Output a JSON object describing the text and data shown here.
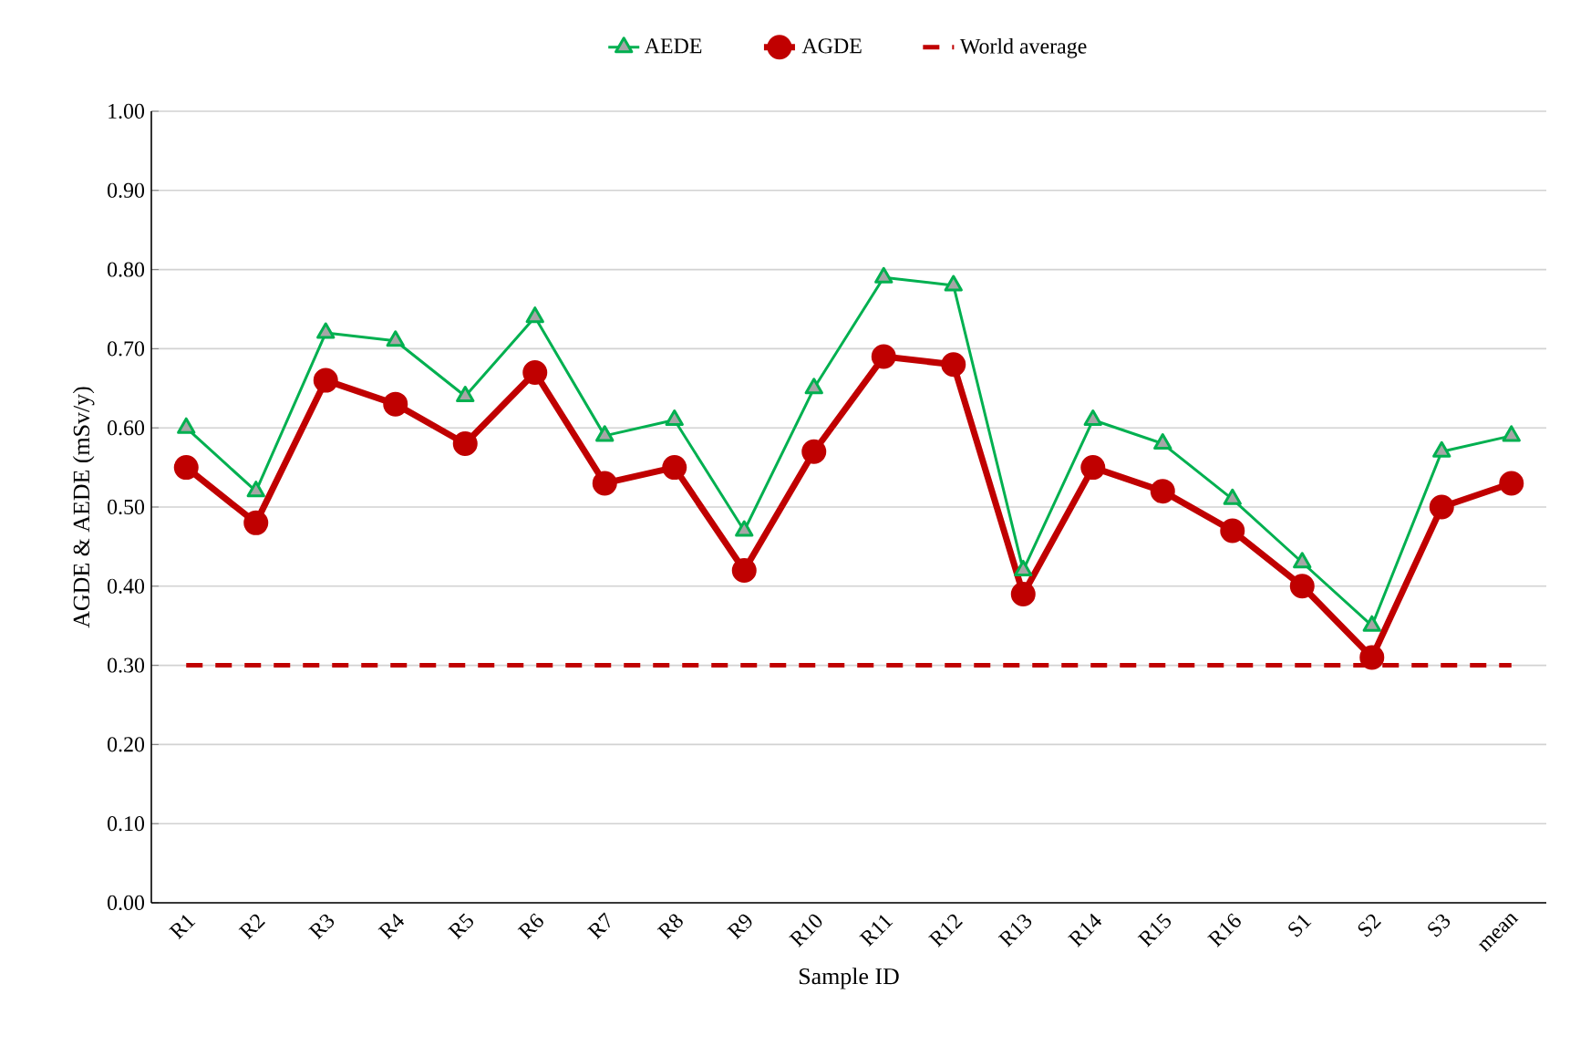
{
  "chart_data": {
    "type": "line",
    "xlabel": "Sample ID",
    "ylabel": "AGDE & AEDE (mSv/y)",
    "categories": [
      "R1",
      "R2",
      "R3",
      "R4",
      "R5",
      "R6",
      "R7",
      "R8",
      "R9",
      "R10",
      "R11",
      "R12",
      "R13",
      "R14",
      "R15",
      "R16",
      "S1",
      "S2",
      "S3",
      "mean"
    ],
    "series": [
      {
        "name": "AEDE",
        "color": "#00b050",
        "marker": "triangle",
        "values": [
          0.6,
          0.52,
          0.72,
          0.71,
          0.64,
          0.74,
          0.59,
          0.61,
          0.47,
          0.65,
          0.79,
          0.78,
          0.42,
          0.61,
          0.58,
          0.51,
          0.43,
          0.35,
          0.57,
          0.59
        ]
      },
      {
        "name": "AGDE",
        "color": "#c00000",
        "marker": "circle",
        "values": [
          0.55,
          0.48,
          0.66,
          0.63,
          0.58,
          0.67,
          0.53,
          0.55,
          0.42,
          0.57,
          0.69,
          0.68,
          0.39,
          0.55,
          0.52,
          0.47,
          0.4,
          0.31,
          0.5,
          0.53
        ]
      },
      {
        "name": "World average",
        "color": "#c00000",
        "marker": "none",
        "line_style": "dashed",
        "values": [
          0.3,
          0.3,
          0.3,
          0.3,
          0.3,
          0.3,
          0.3,
          0.3,
          0.3,
          0.3,
          0.3,
          0.3,
          0.3,
          0.3,
          0.3,
          0.3,
          0.3,
          0.3,
          0.3,
          0.3
        ]
      }
    ],
    "ylim": [
      0,
      1
    ],
    "yticks": [
      {
        "value": 0,
        "label": "0.00"
      },
      {
        "value": 0.1,
        "label": "0.10"
      },
      {
        "value": 0.2,
        "label": "0.20"
      },
      {
        "value": 0.3,
        "label": "0.30"
      },
      {
        "value": 0.4,
        "label": "0.40"
      },
      {
        "value": 0.5,
        "label": "0.50"
      },
      {
        "value": 0.6,
        "label": "0.60"
      },
      {
        "value": 0.7,
        "label": "0.70"
      },
      {
        "value": 0.8,
        "label": "0.80"
      },
      {
        "value": 0.9,
        "label": "0.90"
      },
      {
        "value": 1,
        "label": "1.00"
      }
    ],
    "grid": "y",
    "legend": "top"
  }
}
